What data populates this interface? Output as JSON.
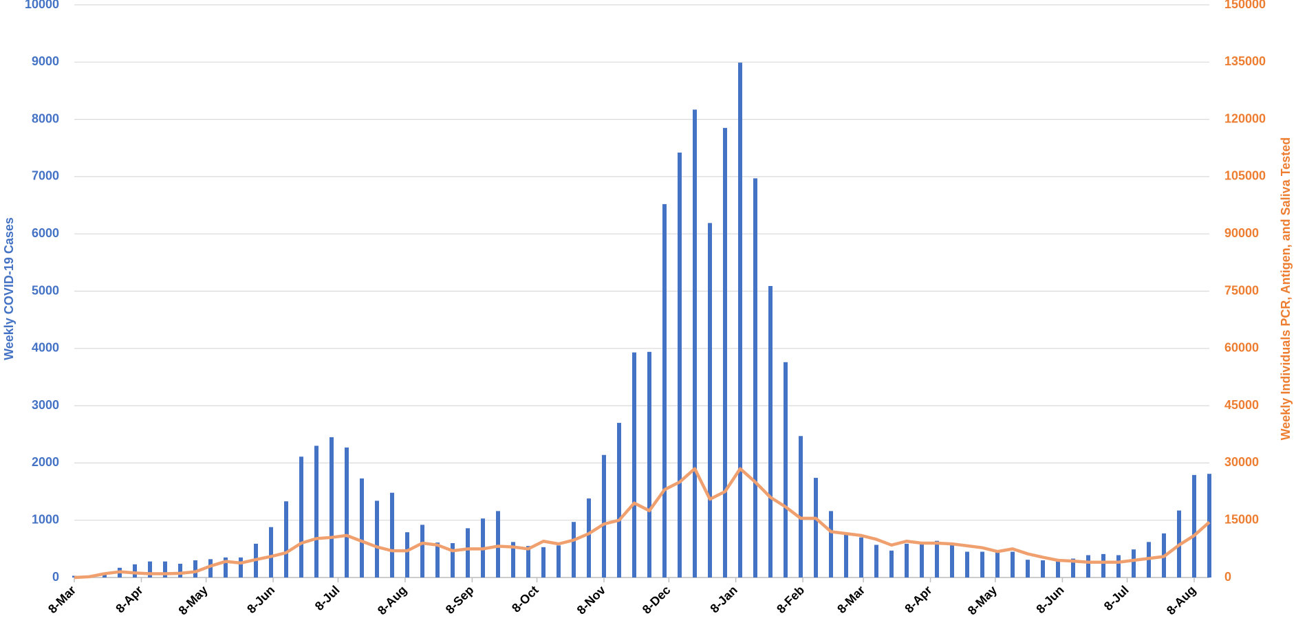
{
  "chart_data": {
    "type": "bar",
    "y_label": "Weekly COVID-19 Cases",
    "y2_label": "Weekly Individuals PCR, Antigen, and Saliva Tested",
    "xlim": [
      0,
      75
    ],
    "xticks": [
      {
        "value": 0,
        "label": "8-Mar"
      },
      {
        "value": 4.43,
        "label": "8-Apr"
      },
      {
        "value": 8.71,
        "label": "8-May"
      },
      {
        "value": 13.14,
        "label": "8-Jun"
      },
      {
        "value": 17.43,
        "label": "8-Jul"
      },
      {
        "value": 21.86,
        "label": "8-Aug"
      },
      {
        "value": 26.29,
        "label": "8-Sep"
      },
      {
        "value": 30.57,
        "label": "8-Oct"
      },
      {
        "value": 35,
        "label": "8-Nov"
      },
      {
        "value": 39.29,
        "label": "8-Dec"
      },
      {
        "value": 43.71,
        "label": "8-Jan"
      },
      {
        "value": 48.14,
        "label": "8-Feb"
      },
      {
        "value": 52.14,
        "label": "8-Mar"
      },
      {
        "value": 56.57,
        "label": "8-Apr"
      },
      {
        "value": 60.86,
        "label": "8-May"
      },
      {
        "value": 65.29,
        "label": "8-Jun"
      },
      {
        "value": 69.57,
        "label": "8-Jul"
      },
      {
        "value": 74,
        "label": "8-Aug"
      }
    ],
    "ylim": [
      0,
      10000
    ],
    "yticks": [
      0,
      1000,
      2000,
      3000,
      4000,
      5000,
      6000,
      7000,
      8000,
      9000,
      10000
    ],
    "y2lim": [
      0,
      150000
    ],
    "y2ticks": [
      0,
      15000,
      30000,
      45000,
      60000,
      75000,
      90000,
      105000,
      120000,
      135000,
      150000
    ],
    "grid": true,
    "y_color": "#4472c4",
    "y2_color": "#ed7d31",
    "series": [
      {
        "type": "bar",
        "color": "#4472c4",
        "values": [
          30,
          20,
          70,
          170,
          230,
          280,
          280,
          240,
          300,
          320,
          350,
          350,
          590,
          880,
          1330,
          2110,
          2300,
          2450,
          2270,
          1730,
          1340,
          1480,
          790,
          920,
          610,
          600,
          860,
          1030,
          1160,
          620,
          550,
          530,
          560,
          970,
          1380,
          2140,
          2700,
          3930,
          3940,
          6520,
          7420,
          8170,
          6190,
          7850,
          8990,
          6970,
          5090,
          3760,
          2470,
          1740,
          1160,
          780,
          700,
          570,
          470,
          590,
          620,
          640,
          600,
          450,
          450,
          470,
          450,
          310,
          300,
          280,
          330,
          390,
          410,
          390,
          490,
          620,
          770,
          1170,
          1790,
          1810
        ]
      },
      {
        "type": "line",
        "axis": "y2",
        "color": "#f0a06e",
        "values": [
          0,
          200,
          1000,
          1500,
          1200,
          1000,
          1000,
          1100,
          1500,
          3000,
          4200,
          3800,
          4700,
          5500,
          6500,
          9000,
          10200,
          10500,
          11000,
          9500,
          8000,
          7000,
          7000,
          9000,
          8500,
          7000,
          7500,
          7500,
          8200,
          8000,
          7500,
          9500,
          8800,
          9800,
          11500,
          14000,
          15000,
          19500,
          17500,
          23000,
          25000,
          28500,
          20500,
          22500,
          28500,
          25000,
          21000,
          18500,
          15500,
          15500,
          12000,
          11500,
          11000,
          10000,
          8500,
          9500,
          9000,
          9000,
          8800,
          8300,
          7800,
          6800,
          7500,
          6200,
          5300,
          4500,
          4300,
          4000,
          4000,
          4000,
          4500,
          5000,
          5500,
          8500,
          11000,
          14500
        ]
      }
    ]
  }
}
